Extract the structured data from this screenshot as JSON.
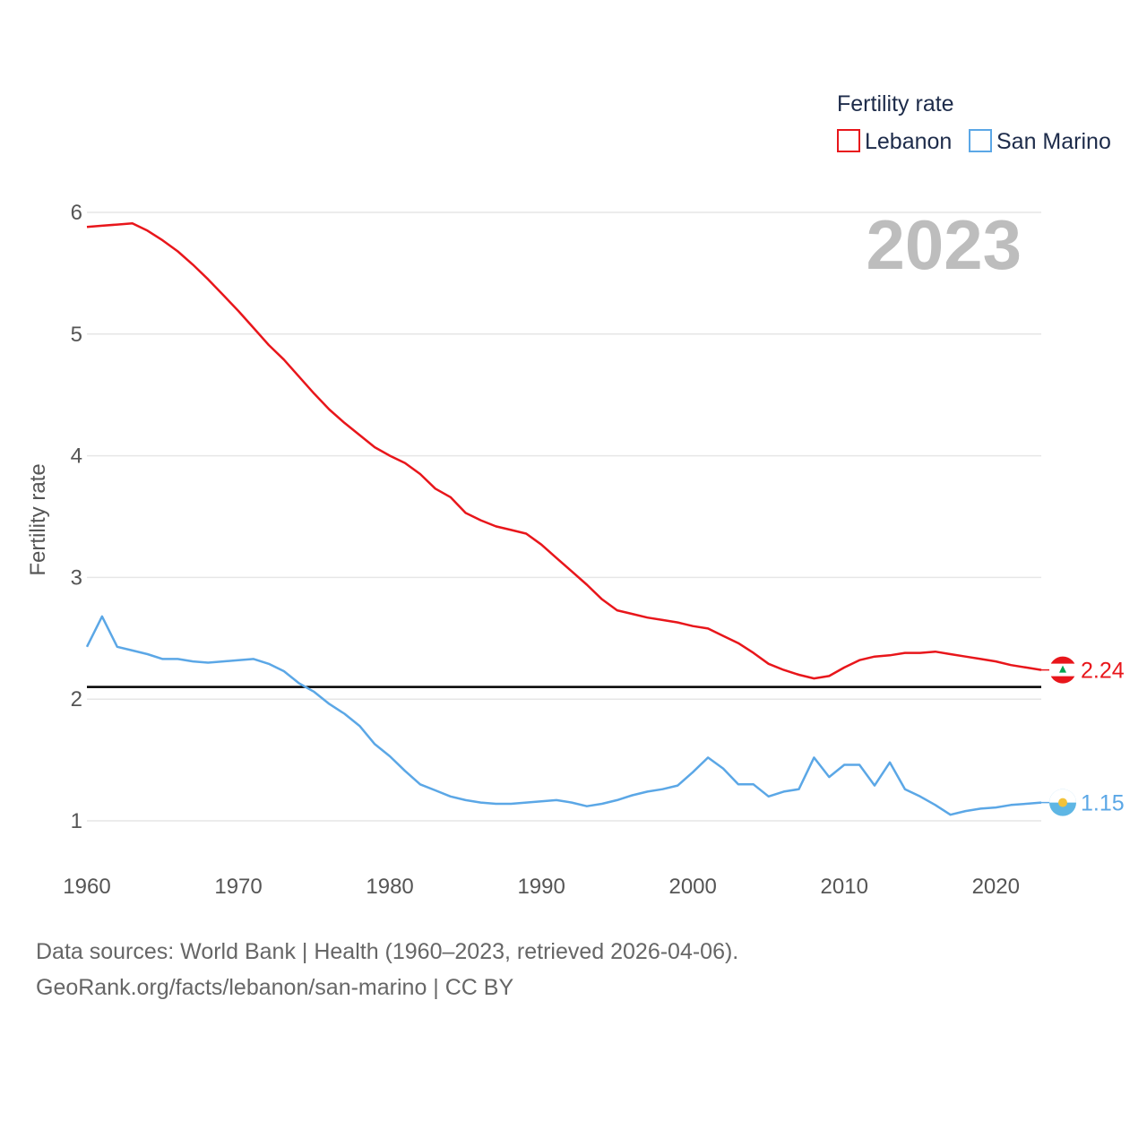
{
  "chart_data": {
    "type": "line",
    "year_label": "2023",
    "ylabel": "Fertility rate",
    "xlabel": "",
    "xlim": [
      1960,
      2023
    ],
    "ylim": [
      0.6,
      6.35
    ],
    "y_ticks": [
      1,
      2,
      3,
      4,
      5,
      6
    ],
    "x_ticks": [
      1960,
      1970,
      1980,
      1990,
      2000,
      2010,
      2020
    ],
    "reference_line": 2.1,
    "legend": {
      "title": "Fertility rate",
      "position": "top-right"
    },
    "x": [
      1960,
      1961,
      1962,
      1963,
      1964,
      1965,
      1966,
      1967,
      1968,
      1969,
      1970,
      1971,
      1972,
      1973,
      1974,
      1975,
      1976,
      1977,
      1978,
      1979,
      1980,
      1981,
      1982,
      1983,
      1984,
      1985,
      1986,
      1987,
      1988,
      1989,
      1990,
      1991,
      1992,
      1993,
      1994,
      1995,
      1996,
      1997,
      1998,
      1999,
      2000,
      2001,
      2002,
      2003,
      2004,
      2005,
      2006,
      2007,
      2008,
      2009,
      2010,
      2011,
      2012,
      2013,
      2014,
      2015,
      2016,
      2017,
      2018,
      2019,
      2020,
      2021,
      2022,
      2023
    ],
    "series": [
      {
        "name": "Lebanon",
        "color": "#e8161b",
        "end_label": "2.24",
        "values": [
          5.88,
          5.89,
          5.9,
          5.91,
          5.85,
          5.77,
          5.68,
          5.57,
          5.45,
          5.32,
          5.19,
          5.05,
          4.91,
          4.79,
          4.65,
          4.51,
          4.38,
          4.27,
          4.17,
          4.07,
          4.0,
          3.94,
          3.85,
          3.73,
          3.66,
          3.53,
          3.47,
          3.42,
          3.39,
          3.36,
          3.27,
          3.16,
          3.05,
          2.94,
          2.82,
          2.73,
          2.7,
          2.67,
          2.65,
          2.63,
          2.6,
          2.58,
          2.52,
          2.46,
          2.38,
          2.29,
          2.24,
          2.2,
          2.17,
          2.19,
          2.26,
          2.32,
          2.35,
          2.36,
          2.38,
          2.38,
          2.39,
          2.37,
          2.35,
          2.33,
          2.31,
          2.28,
          2.26,
          2.24
        ]
      },
      {
        "name": "San Marino",
        "color": "#5ba7e6",
        "end_label": "1.15",
        "values": [
          2.43,
          2.68,
          2.43,
          2.4,
          2.37,
          2.33,
          2.33,
          2.31,
          2.3,
          2.31,
          2.32,
          2.33,
          2.29,
          2.23,
          2.13,
          2.06,
          1.96,
          1.88,
          1.78,
          1.63,
          1.53,
          1.41,
          1.3,
          1.25,
          1.2,
          1.17,
          1.15,
          1.14,
          1.14,
          1.15,
          1.16,
          1.17,
          1.15,
          1.12,
          1.14,
          1.17,
          1.21,
          1.24,
          1.26,
          1.29,
          1.4,
          1.52,
          1.43,
          1.3,
          1.3,
          1.2,
          1.24,
          1.26,
          1.52,
          1.36,
          1.46,
          1.46,
          1.29,
          1.48,
          1.26,
          1.2,
          1.13,
          1.05,
          1.08,
          1.1,
          1.11,
          1.13,
          1.14,
          1.15
        ]
      }
    ]
  },
  "source": {
    "line1": "Data sources: World Bank | Health (1960–2023, retrieved 2026-04-06).",
    "line2": "GeoRank.org/facts/lebanon/san-marino | CC BY"
  }
}
